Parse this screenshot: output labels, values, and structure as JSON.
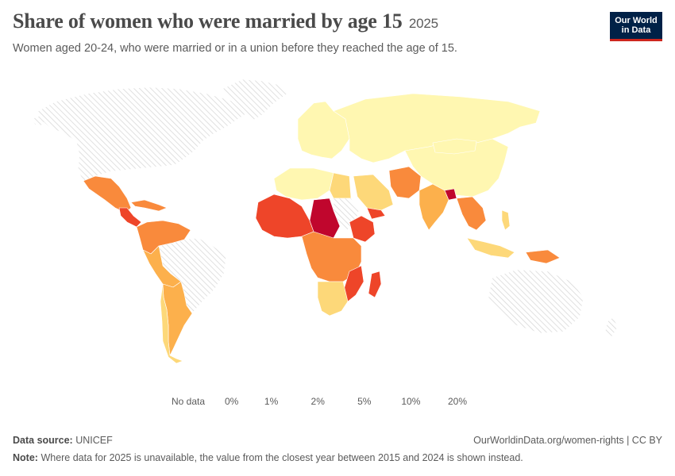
{
  "header": {
    "title": "Share of women who were married by age 15",
    "year": "2025",
    "subtitle": "Women aged 20-24, who were married or in a union before they reached the age of 15."
  },
  "logo": {
    "line1": "Our World",
    "line2": "in Data"
  },
  "legend": {
    "no_data_label": "No data",
    "bins": [
      {
        "label": "0%",
        "color": "#fff7b1"
      },
      {
        "label": "1%",
        "color": "#fdd879"
      },
      {
        "label": "2%",
        "color": "#fcb04c"
      },
      {
        "label": "5%",
        "color": "#f98a3c"
      },
      {
        "label": "10%",
        "color": "#ee4529"
      },
      {
        "label": "20%",
        "color": "#c0062d"
      }
    ]
  },
  "colors": {
    "no_data_hatch": "#d7d7d7",
    "ocean": "#ffffff",
    "border": "#ffffff"
  },
  "regions": [
    {
      "name": "North America",
      "value_bin": "no-data"
    },
    {
      "name": "Mexico",
      "value_bin": "5%"
    },
    {
      "name": "Central America",
      "value_bin": "10%"
    },
    {
      "name": "Caribbean",
      "value_bin": "5%"
    },
    {
      "name": "Colombia / Venezuela",
      "value_bin": "5%"
    },
    {
      "name": "Peru / Bolivia",
      "value_bin": "2%"
    },
    {
      "name": "Brazil",
      "value_bin": "no-data"
    },
    {
      "name": "Paraguay / Argentina",
      "value_bin": "2%"
    },
    {
      "name": "Chile",
      "value_bin": "1%"
    },
    {
      "name": "Greenland",
      "value_bin": "no-data"
    },
    {
      "name": "Europe",
      "value_bin": "0%"
    },
    {
      "name": "Russia / Central Asia",
      "value_bin": "0%"
    },
    {
      "name": "China",
      "value_bin": "0%"
    },
    {
      "name": "Mongolia",
      "value_bin": "0%"
    },
    {
      "name": "North Africa",
      "value_bin": "0%"
    },
    {
      "name": "Egypt",
      "value_bin": "1%"
    },
    {
      "name": "Sahel West",
      "value_bin": "10%"
    },
    {
      "name": "Chad / Niger",
      "value_bin": "20%"
    },
    {
      "name": "Central Africa",
      "value_bin": "5%"
    },
    {
      "name": "Ethiopia",
      "value_bin": "10%"
    },
    {
      "name": "Mozambique / Madagascar",
      "value_bin": "10%"
    },
    {
      "name": "Southern Africa",
      "value_bin": "1%"
    },
    {
      "name": "Arabian Peninsula",
      "value_bin": "1%"
    },
    {
      "name": "Yemen",
      "value_bin": "10%"
    },
    {
      "name": "Iran / Afghanistan",
      "value_bin": "5%"
    },
    {
      "name": "India",
      "value_bin": "2%"
    },
    {
      "name": "Bangladesh",
      "value_bin": "20%"
    },
    {
      "name": "Southeast Asia",
      "value_bin": "5%"
    },
    {
      "name": "Indonesia",
      "value_bin": "1%"
    },
    {
      "name": "Papua New Guinea",
      "value_bin": "5%"
    },
    {
      "name": "Australia",
      "value_bin": "no-data"
    }
  ],
  "footer": {
    "source_label": "Data source:",
    "source_value": "UNICEF",
    "note_label": "Note:",
    "note_value": "Where data for 2025 is unavailable, the value from the closest year between 2015 and 2024 is shown instead.",
    "credit": "OurWorldinData.org/women-rights | CC BY"
  }
}
